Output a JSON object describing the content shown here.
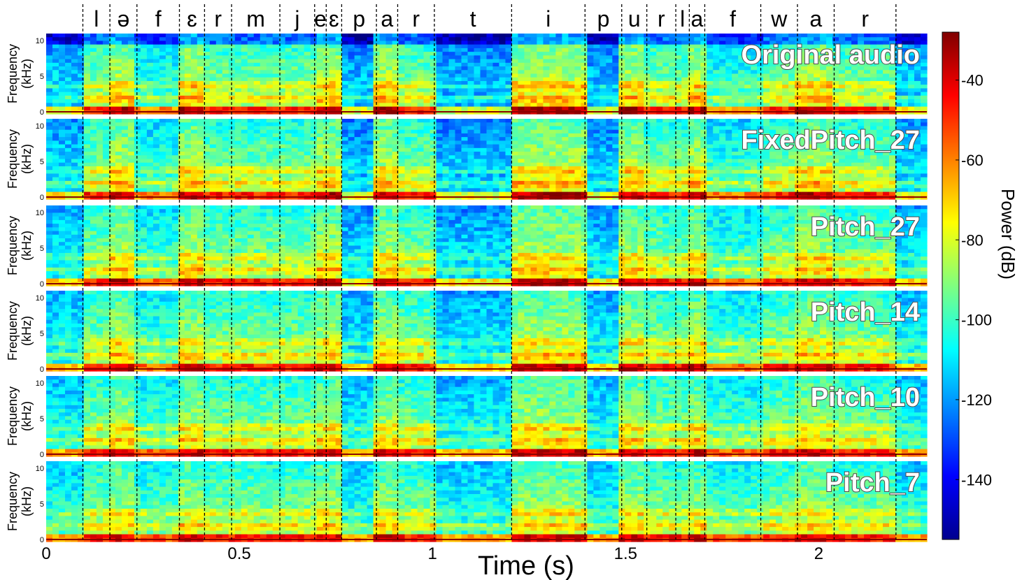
{
  "chart_data": {
    "type": "heatmap",
    "xlabel": "Time (s)",
    "xlim": [
      0,
      2.28
    ],
    "x_ticks": [
      "0",
      "0.5",
      "1",
      "1.5",
      "2"
    ],
    "x_tick_values": [
      0,
      0.5,
      1,
      1.5,
      2
    ],
    "panel_ylabel": "Frequency",
    "panel_yunit": "(kHz)",
    "panel_ylim": [
      0,
      10.5
    ],
    "y_ticks": [
      "0",
      "5",
      "10"
    ],
    "y_tick_values": [
      0,
      5,
      10
    ],
    "panels": [
      {
        "label": "Original audio"
      },
      {
        "label": "FixedPitch_27"
      },
      {
        "label": "Pitch_27"
      },
      {
        "label": "Pitch_14"
      },
      {
        "label": "Pitch_10"
      },
      {
        "label": "Pitch_7"
      }
    ],
    "phonemes": [
      {
        "symbol": "l",
        "start": 0.095,
        "end": 0.165
      },
      {
        "symbol": "ə",
        "start": 0.165,
        "end": 0.235
      },
      {
        "symbol": "f",
        "start": 0.235,
        "end": 0.345
      },
      {
        "symbol": "ɛ",
        "start": 0.345,
        "end": 0.41
      },
      {
        "symbol": "r",
        "start": 0.41,
        "end": 0.48
      },
      {
        "symbol": "m",
        "start": 0.48,
        "end": 0.605
      },
      {
        "symbol": "j",
        "start": 0.605,
        "end": 0.695
      },
      {
        "symbol": "e",
        "start": 0.695,
        "end": 0.725
      },
      {
        "symbol": "ɛ",
        "start": 0.725,
        "end": 0.765
      },
      {
        "symbol": "p",
        "start": 0.765,
        "end": 0.855
      },
      {
        "symbol": "a",
        "start": 0.855,
        "end": 0.91
      },
      {
        "symbol": "r",
        "start": 0.91,
        "end": 1.005
      },
      {
        "symbol": "t",
        "start": 1.005,
        "end": 1.205
      },
      {
        "symbol": "i",
        "start": 1.205,
        "end": 1.395
      },
      {
        "symbol": "p",
        "start": 1.395,
        "end": 1.49
      },
      {
        "symbol": "u",
        "start": 1.49,
        "end": 1.555
      },
      {
        "symbol": "r",
        "start": 1.555,
        "end": 1.63
      },
      {
        "symbol": "l",
        "start": 1.63,
        "end": 1.665
      },
      {
        "symbol": "a",
        "start": 1.665,
        "end": 1.705
      },
      {
        "symbol": "f",
        "start": 1.705,
        "end": 1.85
      },
      {
        "symbol": "w",
        "start": 1.85,
        "end": 1.945
      },
      {
        "symbol": "a",
        "start": 1.945,
        "end": 2.04
      },
      {
        "symbol": "r",
        "start": 2.04,
        "end": 2.2
      }
    ],
    "colorbar": {
      "label": "Power (dB)",
      "range": [
        -155,
        -28
      ],
      "ticks": [
        "-40",
        "-60",
        "-80",
        "-100",
        "-120",
        "-140"
      ],
      "tick_values": [
        -40,
        -60,
        -80,
        -100,
        -120,
        -140
      ],
      "colormap": "jet"
    },
    "grid": false,
    "boundary_style": "dashed"
  }
}
